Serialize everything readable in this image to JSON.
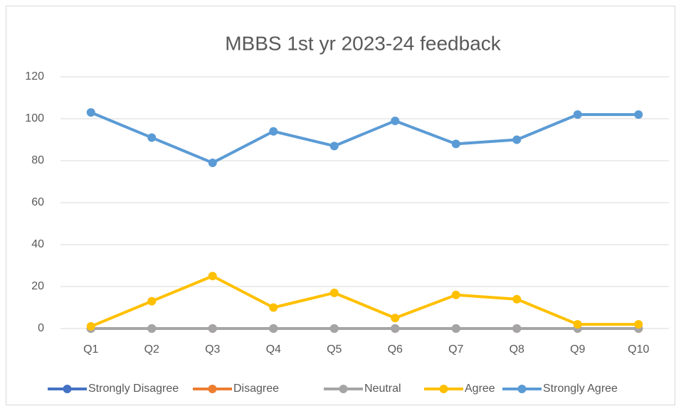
{
  "chart_data": {
    "type": "line",
    "title": "MBBS 1st yr 2023-24 feedback",
    "categories": [
      "Q1",
      "Q2",
      "Q3",
      "Q4",
      "Q5",
      "Q6",
      "Q7",
      "Q8",
      "Q9",
      "Q10"
    ],
    "series": [
      {
        "name": "Strongly Disagree",
        "color": "#4472c4",
        "values": [
          0,
          0,
          0,
          0,
          0,
          0,
          0,
          0,
          0,
          0
        ]
      },
      {
        "name": "Disagree",
        "color": "#ed7d31",
        "values": [
          0,
          0,
          0,
          0,
          0,
          0,
          0,
          0,
          0,
          0
        ]
      },
      {
        "name": "Neutral",
        "color": "#a5a5a5",
        "values": [
          0,
          0,
          0,
          0,
          0,
          0,
          0,
          0,
          0,
          0
        ]
      },
      {
        "name": "Agree",
        "color": "#ffc000",
        "values": [
          1,
          13,
          25,
          10,
          17,
          5,
          16,
          14,
          2,
          2
        ]
      },
      {
        "name": "Strongly Agree",
        "color": "#5b9bd5",
        "values": [
          103,
          91,
          79,
          94,
          87,
          99,
          88,
          90,
          102,
          102
        ]
      }
    ],
    "ylim": [
      0,
      120
    ],
    "yticks": [
      0,
      20,
      40,
      60,
      80,
      100,
      120
    ],
    "grid": true,
    "legend": "bottom"
  }
}
